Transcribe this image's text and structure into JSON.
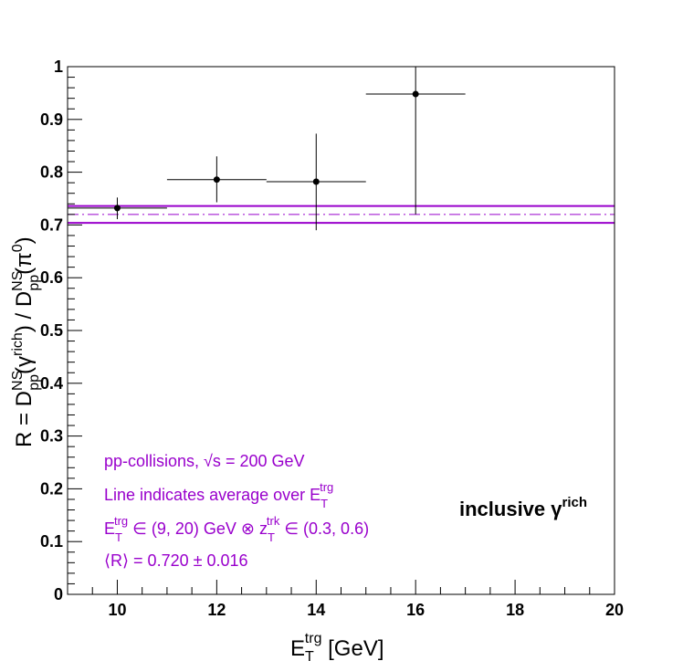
{
  "chart_data": {
    "type": "scatter",
    "xlabel": {
      "main": "E",
      "sub": "T",
      "sup": "trg",
      "tail": " [GeV]"
    },
    "ylabel": {
      "p1": "R = D",
      "p1_sup": "NS",
      "p1_sub": "pp",
      "p2": "(γ",
      "p2_sup": "rich",
      "p3": ") / D",
      "p3_sup": "NS",
      "p3_sub": "pp",
      "p4": "(π",
      "p4_sup": "0",
      "p5": ")"
    },
    "xlim": [
      9,
      20
    ],
    "ylim": [
      0,
      1
    ],
    "x_ticks": [
      10,
      12,
      14,
      16,
      18,
      20
    ],
    "x_tick_labels": [
      "10",
      "12",
      "14",
      "16",
      "18",
      "20"
    ],
    "y_ticks": [
      0,
      0.1,
      0.2,
      0.3,
      0.4,
      0.5,
      0.6,
      0.7,
      0.8,
      0.9,
      1
    ],
    "y_tick_labels": [
      "0",
      "0.1",
      "0.2",
      "0.3",
      "0.4",
      "0.5",
      "0.6",
      "0.7",
      "0.8",
      "0.9",
      "1"
    ],
    "grid": false,
    "points": [
      {
        "x": 10,
        "y": 0.732,
        "xerr": 1,
        "ylo": 0.711,
        "yhi": 0.752
      },
      {
        "x": 12,
        "y": 0.786,
        "xerr": 1,
        "ylo": 0.743,
        "yhi": 0.83
      },
      {
        "x": 14,
        "y": 0.782,
        "xerr": 1,
        "ylo": 0.69,
        "yhi": 0.873
      },
      {
        "x": 16,
        "y": 0.948,
        "xerr": 1,
        "ylo": 0.72,
        "yhi": 1.0
      }
    ],
    "average": {
      "value": 0.72,
      "upper": 0.736,
      "lower": 0.704,
      "color": "#9900cc"
    },
    "annotations": {
      "line1": {
        "a": "pp-collisions, ",
        "sqrt": "√s",
        "b": " = 200 GeV"
      },
      "line2": {
        "a": "Line indicates average over E",
        "sub": "T",
        "sup": "trg"
      },
      "line3": {
        "e": "E",
        "e_sub": "T",
        "e_sup": "trg",
        "mid": " ∈ (9, 20) GeV ⊗ z",
        "z_sub": "T",
        "z_sup": "trk",
        "end": " ∈ (0.3, 0.6)"
      },
      "line4": {
        "text": "⟨R⟩ = 0.720 ± 0.016"
      }
    },
    "badge": {
      "text": "inclusive γ",
      "sup": "rich"
    }
  }
}
